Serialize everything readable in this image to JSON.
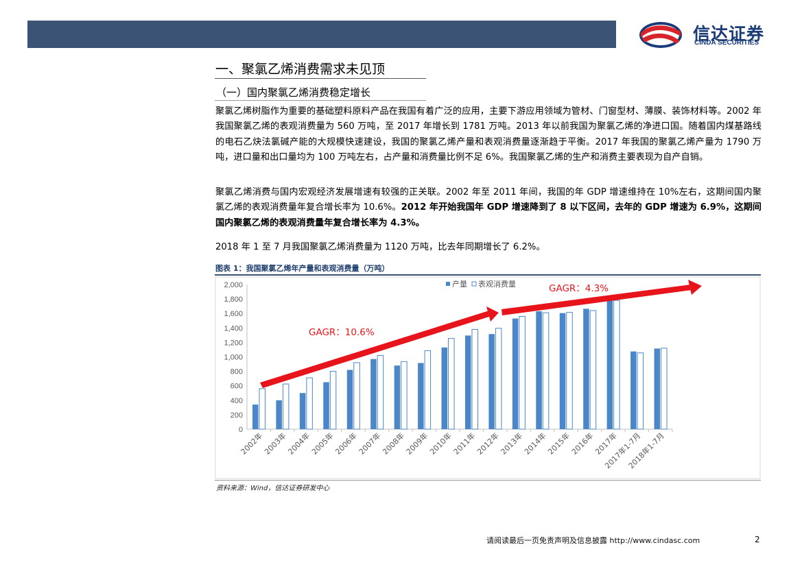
{
  "header": {
    "logo_cn": "信达证券",
    "logo_en": "CINDA SECURITIES",
    "colors": {
      "band": "#3b5375",
      "logo_red": "#d8232a",
      "logo_blue": "#1a3b78"
    }
  },
  "section": {
    "h1": "一、聚氯乙烯消费需求未见顶",
    "h2": "（一）国内聚氯乙烯消费稳定增长"
  },
  "paragraphs": {
    "p1": "聚氯乙烯树脂作为重要的基础塑料原料产品在我国有着广泛的应用，主要下游应用领域为管材、门窗型材、薄膜、装饰材料等。2002 年我国聚氯乙烯的表观消费量为 560 万吨，至 2017 年增长到 1781 万吨。2013 年以前我国为聚氯乙烯的净进口国。随着国内煤基路线的电石乙炔法氯碱产能的大规模快速建设，我国的聚氯乙烯产量和表观消费量逐渐趋于平衡。2017 年我国的聚氯乙烯产量为 1790 万吨，进口量和出口量均为 100 万吨左右，占产量和消费量比例不足 6%。我国聚氯乙烯的生产和消费主要表现为自产自销。",
    "p2_normal": "聚氯乙烯消费与国内宏观经济发展增速有较强的正关联。2002 年至 2011 年间，我国的年 GDP 增速维持在 10%左右，这期间国内聚氯乙烯的表观消费量年复合增长率为 10.6%。",
    "p2_bold": "2012 年开始我国年 GDP 增速降到了 8 以下区间，去年的 GDP 增速为 6.9%，这期间国内聚氯乙烯的表观消费量年复合增长率为 4.3%。",
    "p3": "2018 年 1 至 7 月我国聚氯乙烯消费量为 1120 万吨，比去年同期增长了 6.2%。"
  },
  "figure": {
    "title": "图表 1：我国聚氯乙烯年产量和表观消费量（万吨）",
    "source": "资料来源：Wind，信达证券研发中心",
    "annotation1": "GAGR：10.6%",
    "annotation2": "GAGR：4.3%",
    "annotation_color": "#e8141c",
    "bar_color": "#4a86c8"
  },
  "chart_data": {
    "type": "bar",
    "categories": [
      "2002年",
      "2003年",
      "2004年",
      "2005年",
      "2006年",
      "2007年",
      "2008年",
      "2009年",
      "2010年",
      "2011年",
      "2012年",
      "2013年",
      "2014年",
      "2015年",
      "2016年",
      "2017年",
      "2017年1-7月",
      "2018年1-7月"
    ],
    "series": [
      {
        "name": "产量",
        "values": [
          340,
          400,
          500,
          650,
          820,
          970,
          880,
          915,
          1130,
          1295,
          1315,
          1530,
          1630,
          1605,
          1665,
          1790,
          1075,
          1115
        ]
      },
      {
        "name": "表观消费量",
        "values": [
          560,
          625,
          710,
          800,
          920,
          1020,
          935,
          1085,
          1255,
          1380,
          1395,
          1560,
          1610,
          1615,
          1640,
          1781,
          1055,
          1120
        ]
      }
    ],
    "ylim": [
      0,
      2000
    ],
    "yticks": [
      "0",
      "200",
      "400",
      "600",
      "800",
      "1,000",
      "1,200",
      "1,400",
      "1,600",
      "1,800",
      "2,000"
    ],
    "legend": "top-center",
    "grid": false
  },
  "footer": {
    "text": "请阅读最后一页免责声明及信息披露 http://www.cindasc.com",
    "page": "2"
  }
}
